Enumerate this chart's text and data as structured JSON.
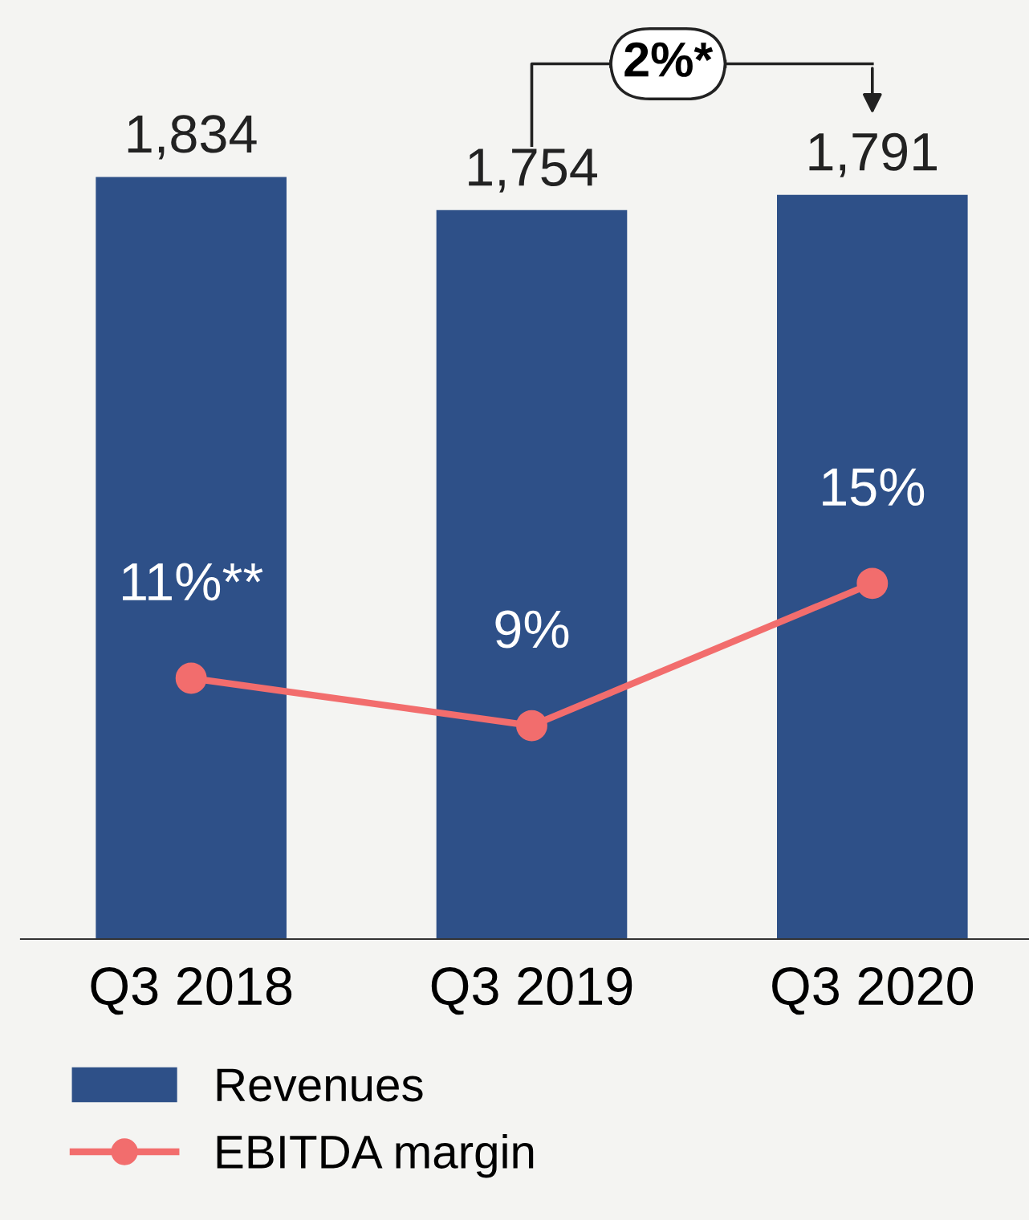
{
  "chart_data": {
    "type": "bar",
    "categories": [
      "Q3 2018",
      "Q3 2019",
      "Q3 2020"
    ],
    "series": [
      {
        "name": "Revenues",
        "color": "#2e5088",
        "values": [
          1834,
          1754,
          1791
        ],
        "value_labels": [
          "1,834",
          "1,754",
          "1,791"
        ]
      },
      {
        "name": "EBITDA margin",
        "type": "line",
        "axis": "y2",
        "color": "#f26d6d",
        "marker": "circle",
        "values": [
          11,
          9,
          15
        ],
        "value_labels": [
          "11%**",
          "9%",
          "15%"
        ]
      }
    ],
    "tick_labels": "x",
    "grid": false,
    "legend": "bottom left",
    "annotations": [
      "2%*"
    ]
  }
}
